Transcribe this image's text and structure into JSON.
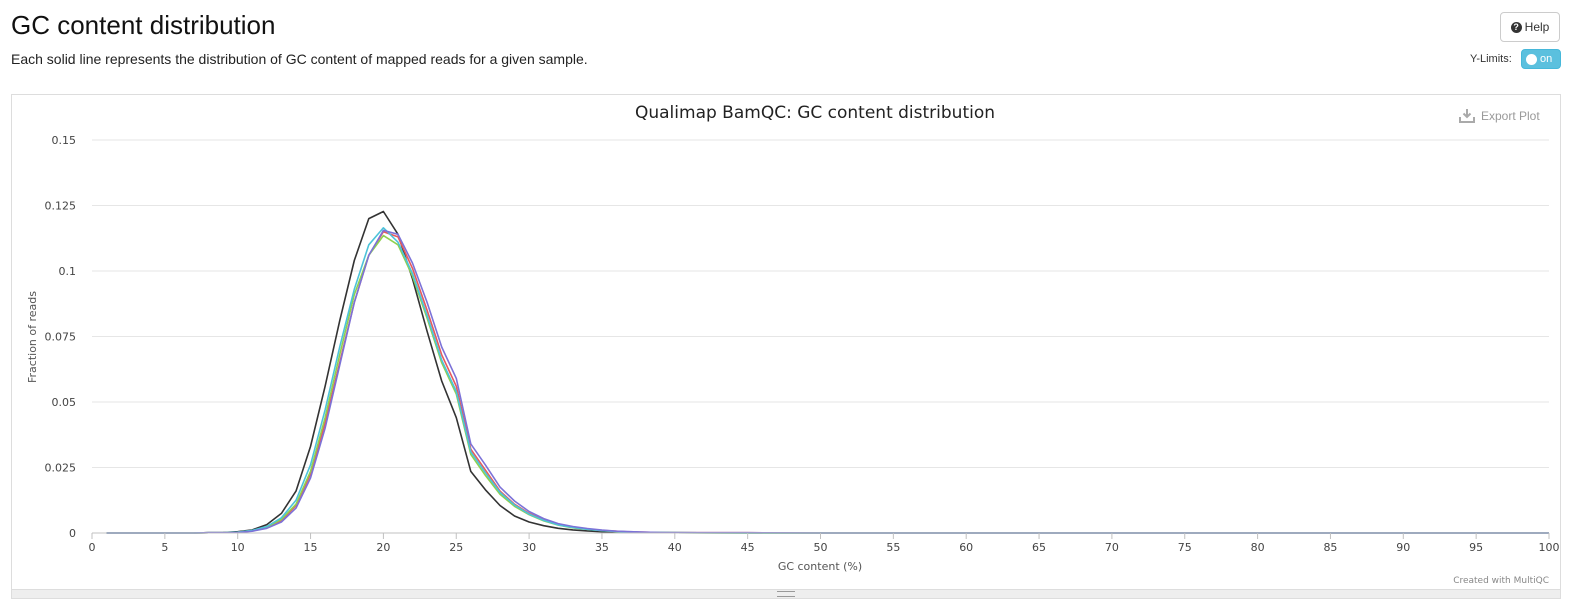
{
  "page": {
    "title": "GC content distribution",
    "description": "Each solid line represents the distribution of GC content of mapped reads for a given sample.",
    "help_label": "Help",
    "ylimits_label": "Y-Limits:",
    "toggle_label": "on",
    "export_label": "Export Plot",
    "credit": "Created with MultiQC"
  },
  "icons": {
    "help": "question-circle-icon",
    "export": "download-icon"
  },
  "colors": {
    "toggle": "#5bc0de"
  },
  "chart_data": {
    "type": "line",
    "title": "Qualimap BamQC: GC content distribution",
    "xlabel": "GC content (%)",
    "ylabel": "Fraction of reads",
    "xlim": [
      0,
      100
    ],
    "ylim": [
      0,
      0.15
    ],
    "xticks": [
      0,
      5,
      10,
      15,
      20,
      25,
      30,
      35,
      40,
      45,
      50,
      55,
      60,
      65,
      70,
      75,
      80,
      85,
      90,
      95,
      100
    ],
    "yticks": [
      {
        "value": 0,
        "label": "0"
      },
      {
        "value": 0.025,
        "label": "0.025"
      },
      {
        "value": 0.05,
        "label": "0.05"
      },
      {
        "value": 0.075,
        "label": "0.075"
      },
      {
        "value": 0.1,
        "label": "0.1"
      },
      {
        "value": 0.125,
        "label": "0.125"
      },
      {
        "value": 0.15,
        "label": "0.15"
      }
    ],
    "grid": true,
    "legend": "none",
    "x": [
      1,
      2,
      3,
      4,
      5,
      6,
      7,
      8,
      9,
      10,
      11,
      12,
      13,
      14,
      15,
      16,
      17,
      18,
      19,
      20,
      21,
      22,
      23,
      24,
      25,
      26,
      27,
      28,
      29,
      30,
      31,
      32,
      33,
      34,
      35,
      36,
      37,
      38,
      39,
      40,
      45,
      50,
      60,
      70,
      80,
      90,
      100
    ],
    "series": [
      {
        "color": "#333333",
        "values": [
          0,
          0,
          0,
          0,
          0,
          0,
          0,
          0.0001,
          0.0002,
          0.0005,
          0.0012,
          0.0032,
          0.0075,
          0.016,
          0.033,
          0.056,
          0.081,
          0.104,
          0.12,
          0.1227,
          0.114,
          0.097,
          0.077,
          0.058,
          0.044,
          0.0235,
          0.0165,
          0.0105,
          0.0065,
          0.0042,
          0.0028,
          0.0018,
          0.0012,
          0.0008,
          0.0005,
          0.0003,
          0.0002,
          0.0001,
          0.0001,
          0.0001,
          0,
          0,
          0,
          0,
          0,
          0,
          0
        ]
      },
      {
        "color": "#e7595c",
        "values": [
          0,
          0,
          0,
          0,
          0,
          0,
          0,
          0.0001,
          0.0001,
          0.0003,
          0.0008,
          0.002,
          0.0048,
          0.0105,
          0.0225,
          0.042,
          0.065,
          0.088,
          0.106,
          0.115,
          0.113,
          0.101,
          0.085,
          0.068,
          0.056,
          0.032,
          0.024,
          0.016,
          0.011,
          0.0075,
          0.005,
          0.0033,
          0.0022,
          0.0015,
          0.001,
          0.0007,
          0.0004,
          0.0003,
          0.0002,
          0.0001,
          0.0001,
          0,
          0,
          0,
          0,
          0,
          0
        ]
      },
      {
        "color": "#8fd14f",
        "values": [
          0,
          0,
          0,
          0,
          0,
          0,
          0,
          0.0001,
          0.0001,
          0.0003,
          0.0009,
          0.0022,
          0.0052,
          0.011,
          0.0235,
          0.044,
          0.068,
          0.091,
          0.106,
          0.1135,
          0.11,
          0.098,
          0.082,
          0.065,
          0.053,
          0.03,
          0.022,
          0.0148,
          0.0102,
          0.007,
          0.0046,
          0.003,
          0.002,
          0.0014,
          0.0009,
          0.0006,
          0.0004,
          0.0002,
          0.0002,
          0.0001,
          0,
          0,
          0,
          0,
          0,
          0,
          0
        ]
      },
      {
        "color": "#4cc3d9",
        "values": [
          0,
          0,
          0,
          0,
          0,
          0,
          0,
          0.0001,
          0.0001,
          0.0003,
          0.001,
          0.0025,
          0.0058,
          0.0125,
          0.026,
          0.047,
          0.071,
          0.093,
          0.11,
          0.1165,
          0.111,
          0.099,
          0.083,
          0.066,
          0.054,
          0.031,
          0.023,
          0.0155,
          0.0107,
          0.0072,
          0.0048,
          0.0031,
          0.0021,
          0.0014,
          0.0009,
          0.0006,
          0.0004,
          0.0002,
          0.0002,
          0.0001,
          0,
          0,
          0,
          0,
          0,
          0,
          0
        ]
      },
      {
        "color": "#7c72d8",
        "values": [
          0,
          0,
          0,
          0,
          0,
          0,
          0,
          0.0001,
          0.0001,
          0.0002,
          0.0007,
          0.0018,
          0.0042,
          0.0095,
          0.021,
          0.04,
          0.064,
          0.088,
          0.106,
          0.1155,
          0.114,
          0.103,
          0.088,
          0.071,
          0.059,
          0.034,
          0.026,
          0.0175,
          0.0122,
          0.0082,
          0.0055,
          0.0036,
          0.0025,
          0.0017,
          0.0011,
          0.0007,
          0.0005,
          0.0003,
          0.0002,
          0.0001,
          0.0001,
          0,
          0,
          0,
          0,
          0,
          0
        ]
      }
    ]
  }
}
